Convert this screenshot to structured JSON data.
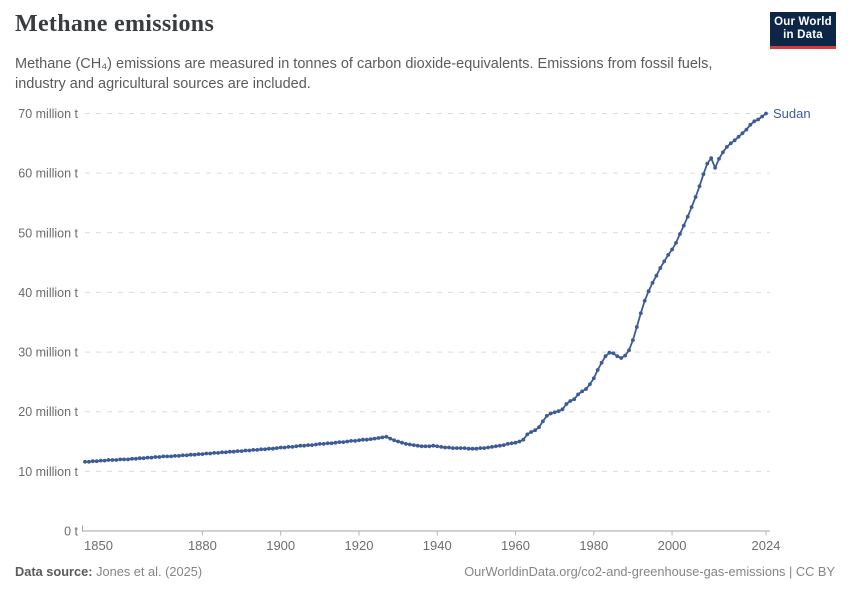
{
  "header": {
    "title": "Methane emissions",
    "subtitle": "Methane (CH₄) emissions are measured in tonnes of carbon dioxide-equivalents. Emissions from fossil fuels, industry and agricultural sources are included."
  },
  "logo": {
    "line1": "Our World",
    "line2": "in Data",
    "background": "#0d2647",
    "accent": "#d93a34"
  },
  "chart_data": {
    "type": "line",
    "title": "Methane emissions",
    "entity": "Sudan",
    "unit": "tonnes of carbon dioxide-equivalents",
    "xlim": [
      1850,
      2024
    ],
    "ylim": [
      0,
      70
    ],
    "grid": "horizontal-dashed",
    "legend": "end-of-line-label",
    "line_color": "#3d5c96",
    "yticks": [
      {
        "value": 0,
        "label": "0 t"
      },
      {
        "value": 10,
        "label": "10 million t"
      },
      {
        "value": 20,
        "label": "20 million t"
      },
      {
        "value": 30,
        "label": "30 million t"
      },
      {
        "value": 40,
        "label": "40 million t"
      },
      {
        "value": 50,
        "label": "50 million t"
      },
      {
        "value": 60,
        "label": "60 million t"
      },
      {
        "value": 70,
        "label": "70 million t"
      }
    ],
    "xticks": [
      {
        "value": 1850,
        "label": "1850"
      },
      {
        "value": 1880,
        "label": "1880"
      },
      {
        "value": 1900,
        "label": "1900"
      },
      {
        "value": 1920,
        "label": "1920"
      },
      {
        "value": 1940,
        "label": "1940"
      },
      {
        "value": 1960,
        "label": "1960"
      },
      {
        "value": 1980,
        "label": "1980"
      },
      {
        "value": 2000,
        "label": "2000"
      },
      {
        "value": 2024,
        "label": "2024"
      }
    ],
    "series": [
      {
        "name": "Sudan",
        "color": "#3d5c96",
        "points": [
          [
            1850,
            11.6
          ],
          [
            1851,
            11.6
          ],
          [
            1852,
            11.7
          ],
          [
            1853,
            11.7
          ],
          [
            1854,
            11.8
          ],
          [
            1855,
            11.8
          ],
          [
            1856,
            11.9
          ],
          [
            1857,
            11.9
          ],
          [
            1858,
            11.9
          ],
          [
            1859,
            12.0
          ],
          [
            1860,
            12.0
          ],
          [
            1861,
            12.0
          ],
          [
            1862,
            12.1
          ],
          [
            1863,
            12.1
          ],
          [
            1864,
            12.2
          ],
          [
            1865,
            12.2
          ],
          [
            1866,
            12.3
          ],
          [
            1867,
            12.3
          ],
          [
            1868,
            12.4
          ],
          [
            1869,
            12.4
          ],
          [
            1870,
            12.5
          ],
          [
            1871,
            12.5
          ],
          [
            1872,
            12.5
          ],
          [
            1873,
            12.6
          ],
          [
            1874,
            12.6
          ],
          [
            1875,
            12.7
          ],
          [
            1876,
            12.7
          ],
          [
            1877,
            12.8
          ],
          [
            1878,
            12.8
          ],
          [
            1879,
            12.9
          ],
          [
            1880,
            12.9
          ],
          [
            1881,
            13.0
          ],
          [
            1882,
            13.0
          ],
          [
            1883,
            13.1
          ],
          [
            1884,
            13.1
          ],
          [
            1885,
            13.2
          ],
          [
            1886,
            13.2
          ],
          [
            1887,
            13.3
          ],
          [
            1888,
            13.3
          ],
          [
            1889,
            13.4
          ],
          [
            1890,
            13.4
          ],
          [
            1891,
            13.5
          ],
          [
            1892,
            13.5
          ],
          [
            1893,
            13.6
          ],
          [
            1894,
            13.6
          ],
          [
            1895,
            13.7
          ],
          [
            1896,
            13.7
          ],
          [
            1897,
            13.8
          ],
          [
            1898,
            13.8
          ],
          [
            1899,
            13.9
          ],
          [
            1900,
            14.0
          ],
          [
            1901,
            14.0
          ],
          [
            1902,
            14.1
          ],
          [
            1903,
            14.1
          ],
          [
            1904,
            14.2
          ],
          [
            1905,
            14.3
          ],
          [
            1906,
            14.3
          ],
          [
            1907,
            14.4
          ],
          [
            1908,
            14.4
          ],
          [
            1909,
            14.5
          ],
          [
            1910,
            14.6
          ],
          [
            1911,
            14.6
          ],
          [
            1912,
            14.7
          ],
          [
            1913,
            14.7
          ],
          [
            1914,
            14.8
          ],
          [
            1915,
            14.9
          ],
          [
            1916,
            14.9
          ],
          [
            1917,
            15.0
          ],
          [
            1918,
            15.1
          ],
          [
            1919,
            15.1
          ],
          [
            1920,
            15.2
          ],
          [
            1921,
            15.3
          ],
          [
            1922,
            15.3
          ],
          [
            1923,
            15.4
          ],
          [
            1924,
            15.5
          ],
          [
            1925,
            15.6
          ],
          [
            1926,
            15.7
          ],
          [
            1927,
            15.8
          ],
          [
            1928,
            15.5
          ],
          [
            1929,
            15.2
          ],
          [
            1930,
            15.0
          ],
          [
            1931,
            14.8
          ],
          [
            1932,
            14.6
          ],
          [
            1933,
            14.5
          ],
          [
            1934,
            14.4
          ],
          [
            1935,
            14.3
          ],
          [
            1936,
            14.2
          ],
          [
            1937,
            14.2
          ],
          [
            1938,
            14.2
          ],
          [
            1939,
            14.3
          ],
          [
            1940,
            14.2
          ],
          [
            1941,
            14.1
          ],
          [
            1942,
            14.0
          ],
          [
            1943,
            14.0
          ],
          [
            1944,
            13.9
          ],
          [
            1945,
            13.9
          ],
          [
            1946,
            13.9
          ],
          [
            1947,
            13.9
          ],
          [
            1948,
            13.8
          ],
          [
            1949,
            13.8
          ],
          [
            1950,
            13.8
          ],
          [
            1951,
            13.9
          ],
          [
            1952,
            13.9
          ],
          [
            1953,
            14.0
          ],
          [
            1954,
            14.1
          ],
          [
            1955,
            14.2
          ],
          [
            1956,
            14.3
          ],
          [
            1957,
            14.4
          ],
          [
            1958,
            14.6
          ],
          [
            1959,
            14.7
          ],
          [
            1960,
            14.8
          ],
          [
            1961,
            15.0
          ],
          [
            1962,
            15.3
          ],
          [
            1963,
            16.2
          ],
          [
            1964,
            16.6
          ],
          [
            1965,
            16.9
          ],
          [
            1966,
            17.4
          ],
          [
            1967,
            18.4
          ],
          [
            1968,
            19.3
          ],
          [
            1969,
            19.7
          ],
          [
            1970,
            19.9
          ],
          [
            1971,
            20.1
          ],
          [
            1972,
            20.4
          ],
          [
            1973,
            21.3
          ],
          [
            1974,
            21.8
          ],
          [
            1975,
            22.1
          ],
          [
            1976,
            22.9
          ],
          [
            1977,
            23.4
          ],
          [
            1978,
            23.8
          ],
          [
            1979,
            24.6
          ],
          [
            1980,
            25.6
          ],
          [
            1981,
            27.0
          ],
          [
            1982,
            28.2
          ],
          [
            1983,
            29.3
          ],
          [
            1984,
            29.9
          ],
          [
            1985,
            29.8
          ],
          [
            1986,
            29.3
          ],
          [
            1987,
            29.0
          ],
          [
            1988,
            29.4
          ],
          [
            1989,
            30.3
          ],
          [
            1990,
            32.0
          ],
          [
            1991,
            34.2
          ],
          [
            1992,
            36.5
          ],
          [
            1993,
            38.6
          ],
          [
            1994,
            40.2
          ],
          [
            1995,
            41.6
          ],
          [
            1996,
            42.8
          ],
          [
            1997,
            44.1
          ],
          [
            1998,
            45.2
          ],
          [
            1999,
            46.3
          ],
          [
            2000,
            47.2
          ],
          [
            2001,
            48.3
          ],
          [
            2002,
            49.8
          ],
          [
            2003,
            51.2
          ],
          [
            2004,
            52.7
          ],
          [
            2005,
            54.3
          ],
          [
            2006,
            56.0
          ],
          [
            2007,
            57.8
          ],
          [
            2008,
            59.8
          ],
          [
            2009,
            61.6
          ],
          [
            2010,
            62.5
          ],
          [
            2011,
            60.9
          ],
          [
            2012,
            62.4
          ],
          [
            2013,
            63.5
          ],
          [
            2014,
            64.4
          ],
          [
            2015,
            65.0
          ],
          [
            2016,
            65.5
          ],
          [
            2017,
            66.1
          ],
          [
            2018,
            66.7
          ],
          [
            2019,
            67.3
          ],
          [
            2020,
            68.1
          ],
          [
            2021,
            68.7
          ],
          [
            2022,
            69.0
          ],
          [
            2023,
            69.5
          ],
          [
            2024,
            70.0
          ]
        ]
      }
    ]
  },
  "footer": {
    "source_label": "Data source:",
    "source_value": "Jones et al. (2025)",
    "rights": "OurWorldinData.org/co2-and-greenhouse-gas-emissions | CC BY"
  }
}
